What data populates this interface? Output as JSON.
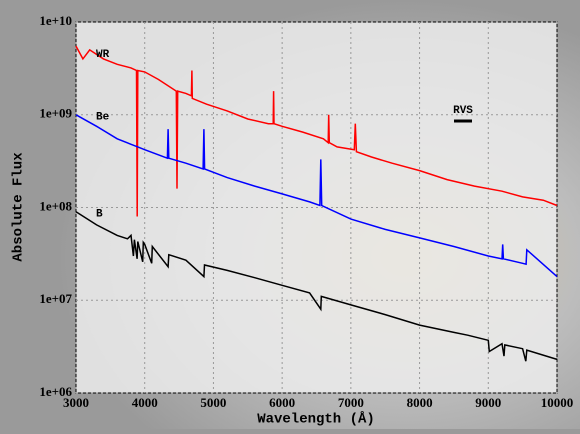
{
  "chart_data": {
    "type": "line",
    "xlabel": "Wavelength (Å)",
    "ylabel": "Absolute Flux",
    "xlim": [
      3000,
      10000
    ],
    "xticks": [
      3000,
      4000,
      5000,
      6000,
      7000,
      8000,
      9000,
      10000
    ],
    "ylim": [
      1000000,
      10000000000
    ],
    "log_y": true,
    "grid": true,
    "yticks": [
      {
        "value": 1000000,
        "label": "1e+06"
      },
      {
        "value": 10000000,
        "label": "1e+07"
      },
      {
        "value": 100000000,
        "label": "1e+08"
      },
      {
        "value": 1000000000,
        "label": "1e+09"
      },
      {
        "value": 10000000000,
        "label": "1e+10"
      }
    ],
    "annotations": [
      "RVS"
    ],
    "series": [
      {
        "name": "WR",
        "color": "#ff0000",
        "x": [
          3000,
          3100,
          3200,
          3400,
          3600,
          3800,
          3880,
          3890,
          3900,
          4000,
          4200,
          4460,
          4470,
          4480,
          4600,
          4680,
          4686,
          4692,
          4900,
          5200,
          5500,
          5800,
          5870,
          5876,
          5882,
          6000,
          6300,
          6600,
          6670,
          6678,
          6686,
          6800,
          7050,
          7065,
          7080,
          7300,
          7600,
          8000,
          8400,
          8800,
          9200,
          9500,
          9800,
          10000
        ],
        "values": [
          5500000000,
          4000000000,
          5000000000,
          4000000000,
          3500000000,
          3200000000,
          3000000000,
          80000000,
          3000000000,
          2900000000,
          2400000000,
          1800000000,
          160000000,
          1800000000,
          1700000000,
          1600000000,
          3000000000,
          1500000000,
          1300000000,
          1100000000,
          900000000,
          800000000,
          800000000,
          1800000000,
          800000000,
          750000000,
          650000000,
          550000000,
          500000000,
          1000000000,
          500000000,
          450000000,
          420000000,
          800000000,
          400000000,
          350000000,
          300000000,
          250000000,
          200000000,
          170000000,
          150000000,
          130000000,
          120000000,
          105000000
        ]
      },
      {
        "name": "Be",
        "color": "#0000ff",
        "x": [
          3000,
          3300,
          3600,
          3800,
          3900,
          4000,
          4330,
          4340,
          4350,
          4600,
          4850,
          4861,
          4872,
          5200,
          5600,
          6000,
          6400,
          6550,
          6563,
          6576,
          7000,
          7500,
          8000,
          8500,
          9000,
          9200,
          9210,
          9220,
          9500,
          9550,
          9560,
          10000
        ],
        "values": [
          1000000000,
          750000000,
          550000000,
          480000000,
          450000000,
          420000000,
          340000000,
          700000000,
          340000000,
          300000000,
          260000000,
          700000000,
          260000000,
          210000000,
          170000000,
          140000000,
          115000000,
          105000000,
          330000000,
          105000000,
          75000000,
          58000000,
          47000000,
          38000000,
          30000000,
          28000000,
          40000000,
          28000000,
          25000000,
          24500000,
          35000000,
          18000000
        ]
      },
      {
        "name": "B",
        "color": "#000000",
        "x": [
          3000,
          3300,
          3600,
          3750,
          3800,
          3835,
          3850,
          3889,
          3900,
          3970,
          3980,
          4000,
          4101,
          4110,
          4340,
          4350,
          4600,
          4861,
          4870,
          5200,
          5600,
          6000,
          6400,
          6563,
          6570,
          7000,
          7500,
          8000,
          8500,
          8700,
          9000,
          9015,
          9200,
          9229,
          9240,
          9500,
          9546,
          9560,
          10000
        ],
        "values": [
          90000000,
          65000000,
          50000000,
          46000000,
          50000000,
          30000000,
          45000000,
          28000000,
          43000000,
          26000000,
          42000000,
          40000000,
          25000000,
          38000000,
          23000000,
          31000000,
          27000000,
          18000000,
          24000000,
          21000000,
          17500000,
          14500000,
          12000000,
          8000000,
          11000000,
          8900000,
          7000000,
          5400000,
          4500000,
          4200000,
          3700000,
          2800000,
          3400000,
          2500000,
          3300000,
          3000000,
          2200000,
          2900000,
          2300000
        ]
      }
    ]
  }
}
